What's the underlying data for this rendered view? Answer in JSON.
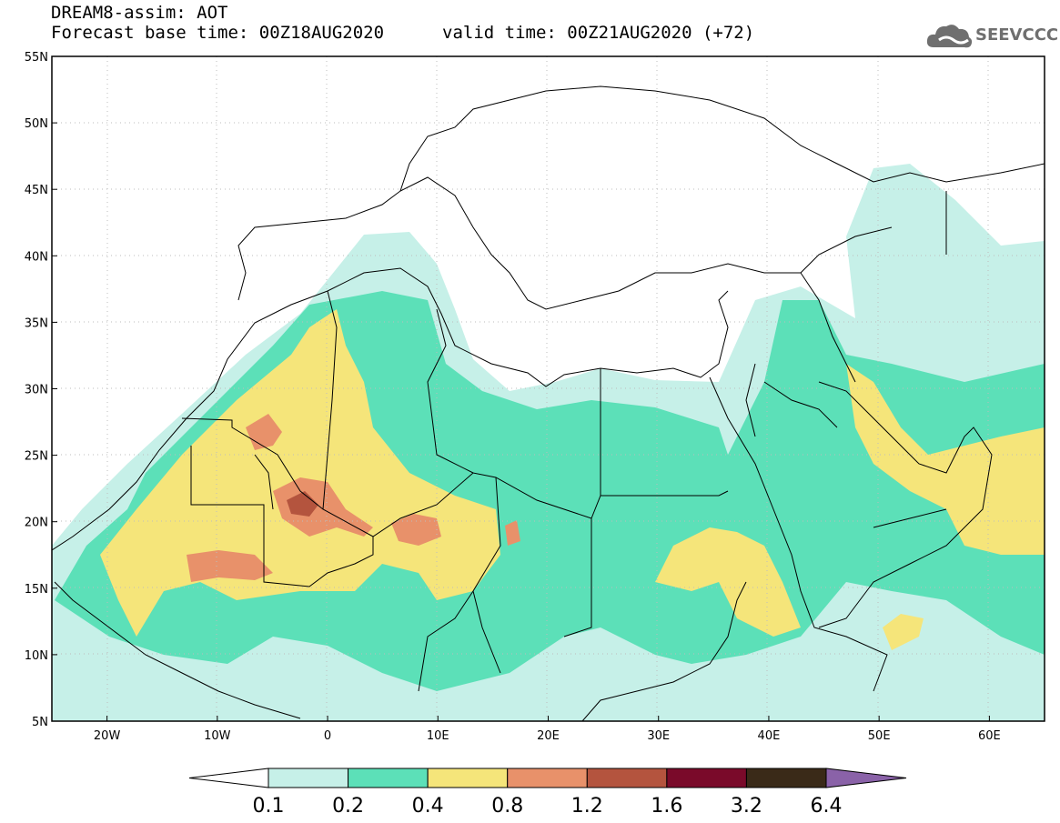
{
  "header": {
    "model_title": "DREAM8-assim: AOT",
    "base_time": "Forecast base time: 00Z18AUG2020",
    "valid_time": "valid time: 00Z21AUG2020 (+72)"
  },
  "logo": {
    "text": "SEEVCCC",
    "icon": "cloud-icon"
  },
  "map": {
    "lat_labels": [
      {
        "lat": 55,
        "text": "55N"
      },
      {
        "lat": 50,
        "text": "50N"
      },
      {
        "lat": 45,
        "text": "45N"
      },
      {
        "lat": 40,
        "text": "40N"
      },
      {
        "lat": 35,
        "text": "35N"
      },
      {
        "lat": 30,
        "text": "30N"
      },
      {
        "lat": 25,
        "text": "25N"
      },
      {
        "lat": 20,
        "text": "20N"
      },
      {
        "lat": 15,
        "text": "15N"
      },
      {
        "lat": 10,
        "text": "10N"
      },
      {
        "lat": 5,
        "text": "5N"
      }
    ],
    "lon_labels": [
      {
        "lon": -20,
        "text": "20W"
      },
      {
        "lon": -10,
        "text": "10W"
      },
      {
        "lon": 0,
        "text": "0"
      },
      {
        "lon": 10,
        "text": "10E"
      },
      {
        "lon": 20,
        "text": "20E"
      },
      {
        "lon": 30,
        "text": "30E"
      },
      {
        "lon": 40,
        "text": "40E"
      },
      {
        "lon": 50,
        "text": "50E"
      },
      {
        "lon": 60,
        "text": "60E"
      }
    ],
    "lon_range": [
      -25,
      65
    ],
    "lat_range": [
      5,
      55
    ],
    "gridlines": "dotted"
  },
  "colorbar": {
    "labels": [
      "0.1",
      "0.2",
      "0.4",
      "0.8",
      "1.2",
      "1.6",
      "3.2",
      "6.4"
    ],
    "colors": [
      "#ffffff",
      "#c6f0e8",
      "#5ce0b8",
      "#f5e57a",
      "#e8916a",
      "#b4543e",
      "#7a0a2a",
      "#3a2a18",
      "#8a62a8"
    ]
  }
}
